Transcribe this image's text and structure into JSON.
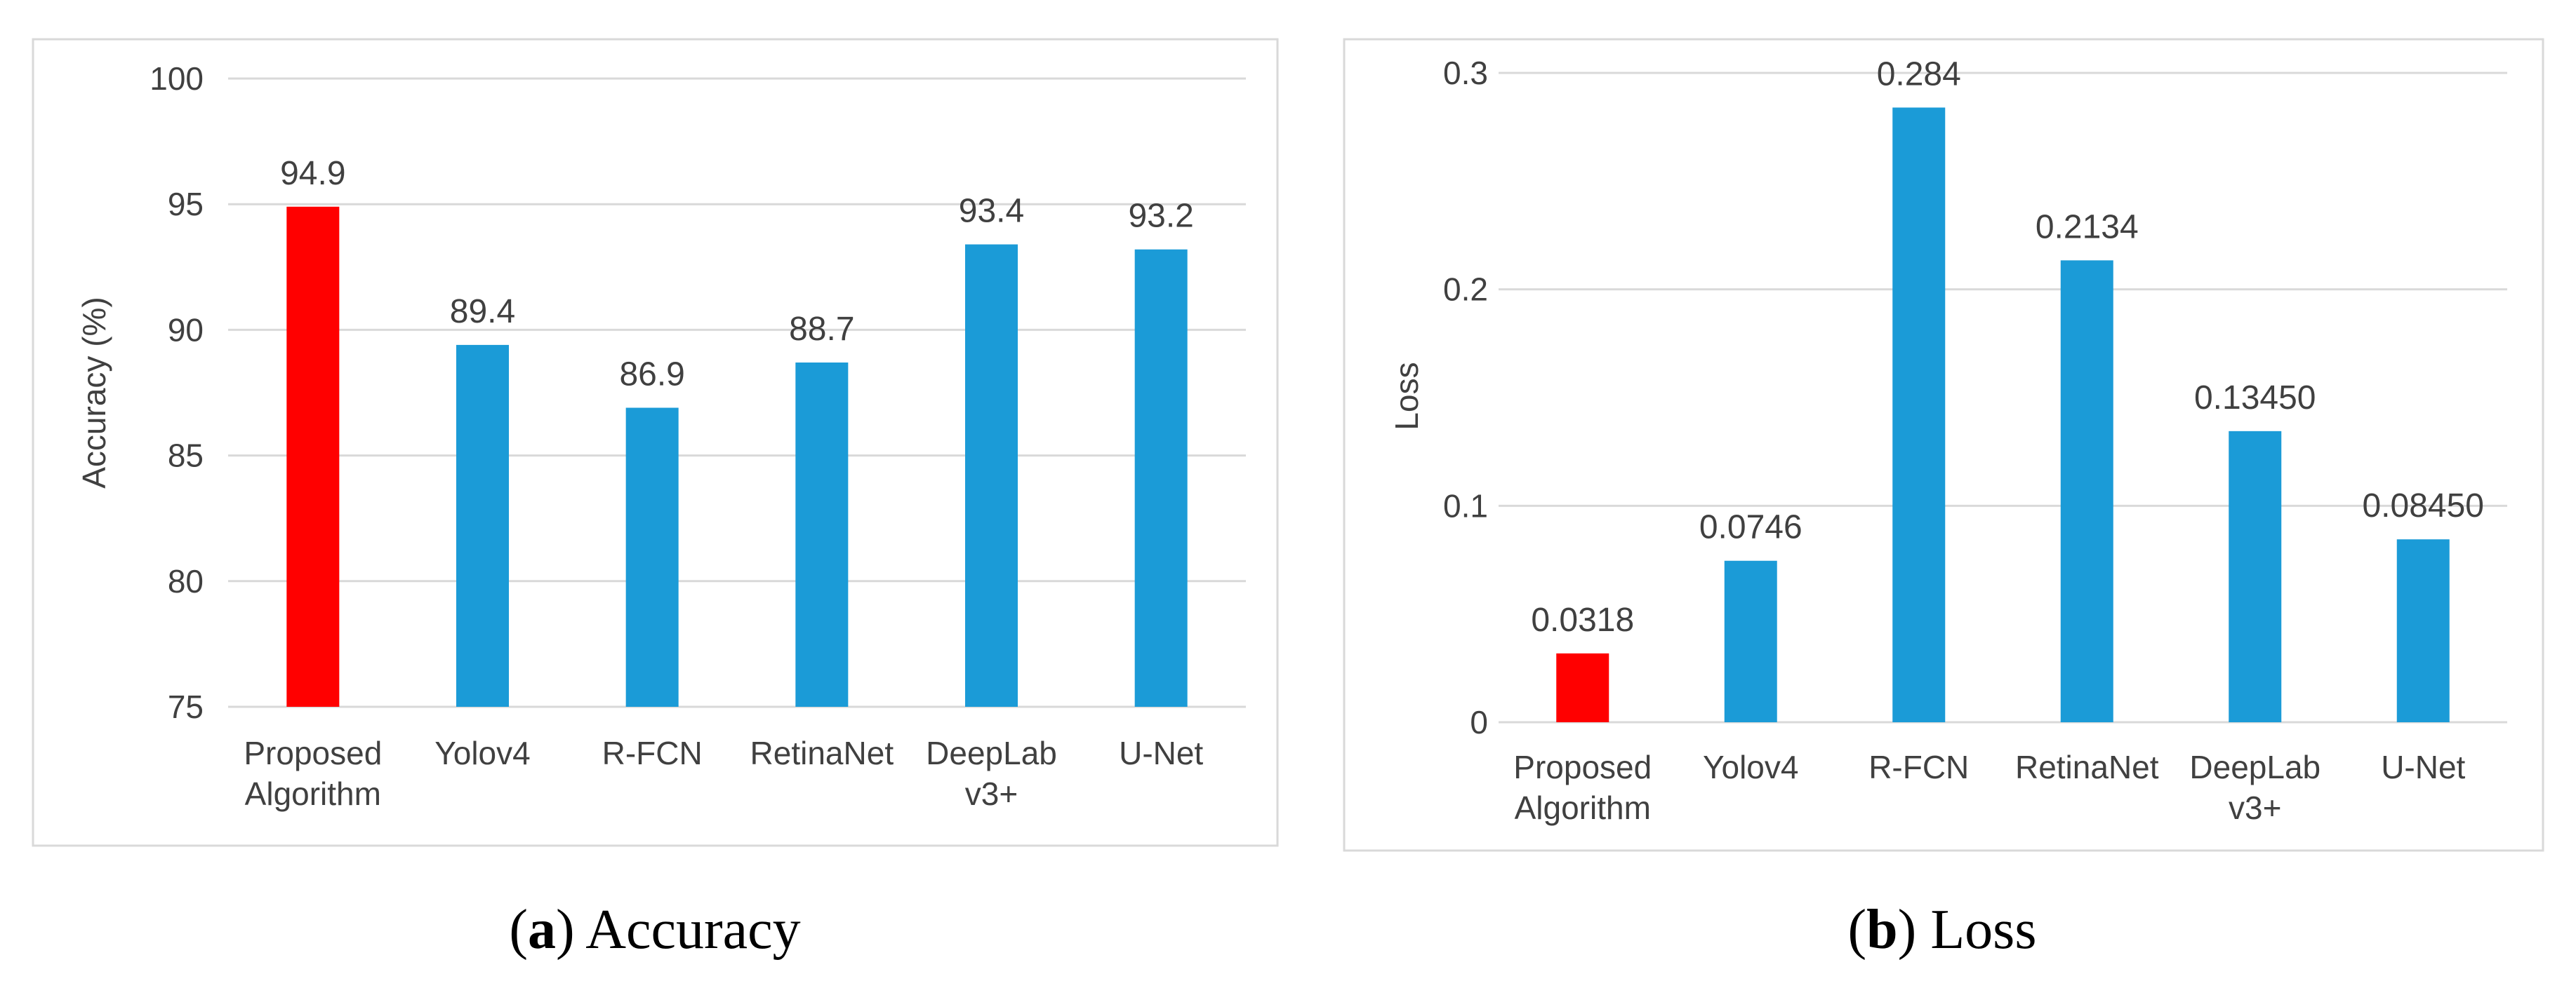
{
  "chart_data": [
    {
      "type": "bar",
      "title": "",
      "xlabel": "",
      "ylabel": "Accuracy (%)",
      "ylim": [
        75,
        100
      ],
      "yticks": [
        "75",
        "80",
        "85",
        "90",
        "95",
        "100"
      ],
      "grid": true,
      "categories": [
        [
          "Proposed",
          "Algorithm"
        ],
        [
          "Yolov4"
        ],
        [
          "R-FCN"
        ],
        [
          "RetinaNet"
        ],
        [
          "DeepLab",
          "v3+"
        ],
        [
          "U-Net"
        ]
      ],
      "values": [
        94.9,
        89.4,
        86.9,
        88.7,
        93.4,
        93.2
      ],
      "value_labels": [
        "94.9",
        "89.4",
        "86.9",
        "88.7",
        "93.4",
        "93.2"
      ],
      "colors": [
        "#ff0000",
        "#1b9bd7",
        "#1b9bd7",
        "#1b9bd7",
        "#1b9bd7",
        "#1b9bd7"
      ],
      "caption": {
        "letter": "a",
        "text": "Accuracy"
      }
    },
    {
      "type": "bar",
      "title": "",
      "xlabel": "",
      "ylabel": "Loss",
      "ylim": [
        0,
        0.3
      ],
      "yticks": [
        "0",
        "0.1",
        "0.2",
        "0.3"
      ],
      "grid": true,
      "categories": [
        [
          "Proposed",
          "Algorithm"
        ],
        [
          "Yolov4"
        ],
        [
          "R-FCN"
        ],
        [
          "RetinaNet"
        ],
        [
          "DeepLab",
          "v3+"
        ],
        [
          "U-Net"
        ]
      ],
      "values": [
        0.0318,
        0.0746,
        0.284,
        0.2134,
        0.1345,
        0.0845
      ],
      "value_labels": [
        "0.0318",
        "0.0746",
        "0.284",
        "0.2134",
        "0.13450",
        "0.08450"
      ],
      "colors": [
        "#ff0000",
        "#1b9bd7",
        "#1b9bd7",
        "#1b9bd7",
        "#1b9bd7",
        "#1b9bd7"
      ],
      "caption": {
        "letter": "b",
        "text": "Loss"
      }
    }
  ]
}
